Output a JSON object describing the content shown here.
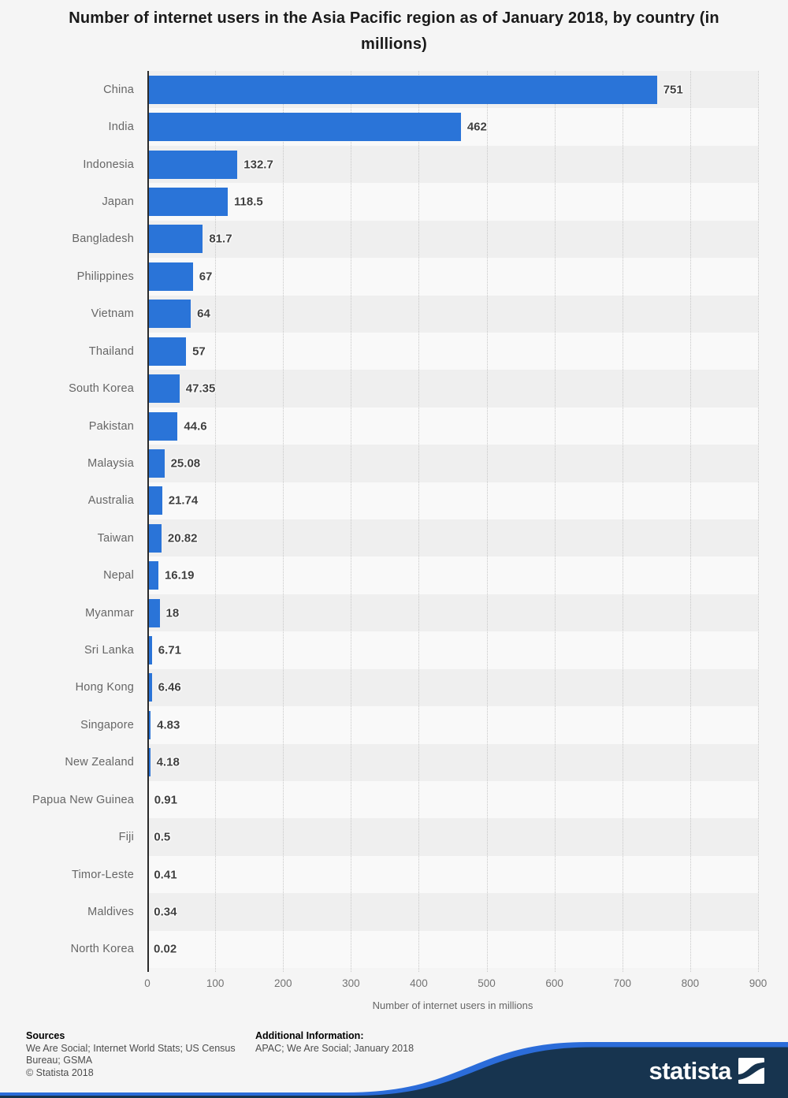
{
  "title": "Number of internet users in the Asia Pacific region as of January 2018, by country (in millions)",
  "chart_data": {
    "type": "bar",
    "orientation": "horizontal",
    "title": "Number of internet users in the Asia Pacific region as of January 2018, by country (in millions)",
    "categories": [
      "China",
      "India",
      "Indonesia",
      "Japan",
      "Bangladesh",
      "Philippines",
      "Vietnam",
      "Thailand",
      "South Korea",
      "Pakistan",
      "Malaysia",
      "Australia",
      "Taiwan",
      "Nepal",
      "Myanmar",
      "Sri Lanka",
      "Hong Kong",
      "Singapore",
      "New Zealand",
      "Papua New Guinea",
      "Fiji",
      "Timor-Leste",
      "Maldives",
      "North Korea"
    ],
    "values": [
      751,
      462,
      132.7,
      118.5,
      81.7,
      67,
      64,
      57,
      47.35,
      44.6,
      25.08,
      21.74,
      20.82,
      16.19,
      18,
      6.71,
      6.46,
      4.83,
      4.18,
      0.91,
      0.5,
      0.41,
      0.34,
      0.02
    ],
    "value_labels": [
      "751",
      "462",
      "132.7",
      "118.5",
      "81.7",
      "67",
      "64",
      "57",
      "47.35",
      "44.6",
      "25.08",
      "21.74",
      "20.82",
      "16.19",
      "18",
      "6.71",
      "6.46",
      "4.83",
      "4.18",
      "0.91",
      "0.5",
      "0.41",
      "0.34",
      "0.02"
    ],
    "xlabel": "Number of internet users in millions",
    "x_ticks": [
      0,
      100,
      200,
      300,
      400,
      500,
      600,
      700,
      800,
      900
    ],
    "xlim": [
      0,
      900
    ],
    "grid": "vertical-dotted",
    "legend": "none",
    "bar_color": "#2a74d8",
    "stripe_colors": [
      "#efefef",
      "#f9f9f9"
    ]
  },
  "footer": {
    "sources_label": "Sources",
    "sources_text": "We Are Social; Internet World Stats; US Census Bureau; GSMA",
    "copyright": "© Statista 2018",
    "additional_label": "Additional Information:",
    "additional_text": "APAC; We Are Social; January 2018"
  },
  "branding": {
    "logo_text": "statista",
    "navy": "#17344f",
    "blue": "#2b6cd9"
  }
}
